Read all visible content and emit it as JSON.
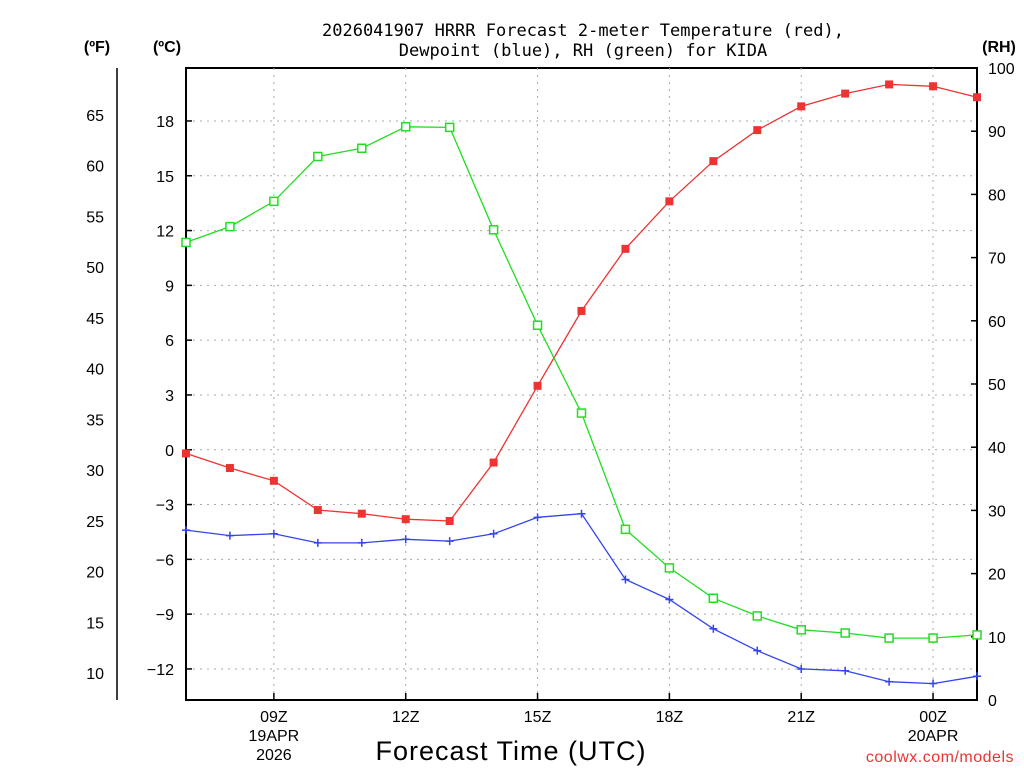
{
  "chart_data": {
    "type": "line",
    "title_line1": "2026041907 HRRR Forecast 2-meter Temperature (red),",
    "title_line2": "Dewpoint (blue), RH (green) for KIDA",
    "xlabel": "Forecast Time (UTC)",
    "unit_f": "(ºF)",
    "unit_c": "(ºC)",
    "unit_rh": "(RH)",
    "watermark": "coolwx.com/models",
    "x_hours": [
      7,
      8,
      9,
      10,
      11,
      12,
      13,
      14,
      15,
      16,
      17,
      18,
      19,
      20,
      21,
      22,
      23,
      24,
      25
    ],
    "xlim": [
      7,
      25
    ],
    "x_ticks": [
      {
        "hour": 9,
        "label": "09Z",
        "sub1": "19APR",
        "sub2": "2026"
      },
      {
        "hour": 12,
        "label": "12Z",
        "sub1": "",
        "sub2": ""
      },
      {
        "hour": 15,
        "label": "15Z",
        "sub1": "",
        "sub2": ""
      },
      {
        "hour": 18,
        "label": "18Z",
        "sub1": "",
        "sub2": ""
      },
      {
        "hour": 21,
        "label": "21Z",
        "sub1": "",
        "sub2": ""
      },
      {
        "hour": 24,
        "label": "00Z",
        "sub1": "20APR",
        "sub2": ""
      }
    ],
    "ylim_c": [
      -13.7,
      20.9
    ],
    "y_ticks_c": [
      18,
      15,
      12,
      9,
      6,
      3,
      0,
      -3,
      -6,
      -9,
      -12
    ],
    "y_tick_labels_c": [
      "18",
      "15",
      "12",
      "9",
      "6",
      "3",
      "0",
      "−3",
      "−6",
      "−9",
      "−12"
    ],
    "y_ticks_f": [
      65,
      60,
      55,
      50,
      45,
      40,
      35,
      30,
      25,
      20,
      15,
      10
    ],
    "y_tick_labels_f": [
      "65",
      "60",
      "55",
      "50",
      "45",
      "40",
      "35",
      "30",
      "25",
      "20",
      "15",
      "10"
    ],
    "ylim_rh": [
      0,
      100
    ],
    "y_ticks_rh": [
      100,
      90,
      80,
      70,
      60,
      50,
      40,
      30,
      20,
      10,
      0
    ],
    "y_tick_labels_rh": [
      "100",
      "90",
      "80",
      "70",
      "60",
      "50",
      "40",
      "30",
      "20",
      "10",
      "0"
    ],
    "series": [
      {
        "name": "Temperature",
        "axis": "C",
        "color": "#ee3333",
        "marker": "filled-square",
        "values": [
          -0.2,
          -1.0,
          -1.7,
          -3.3,
          -3.5,
          -3.8,
          -3.9,
          -0.7,
          3.5,
          7.6,
          11.0,
          13.6,
          15.8,
          17.5,
          18.8,
          19.5,
          20.0,
          19.9,
          19.3
        ]
      },
      {
        "name": "Dewpoint",
        "axis": "C",
        "color": "#3344ee",
        "marker": "plus",
        "values": [
          -4.4,
          -4.7,
          -4.6,
          -5.1,
          -5.1,
          -4.9,
          -5.0,
          -4.6,
          -3.7,
          -3.5,
          -7.1,
          -8.2,
          -9.8,
          -11.0,
          -12.0,
          -12.1,
          -12.7,
          -12.8,
          -12.4
        ]
      },
      {
        "name": "RH",
        "axis": "RH",
        "color": "#22dd22",
        "marker": "open-square",
        "values": [
          72.4,
          74.9,
          78.9,
          86.0,
          87.3,
          90.7,
          90.6,
          74.4,
          59.3,
          45.4,
          27.0,
          20.9,
          16.1,
          13.3,
          11.1,
          10.6,
          9.8,
          9.8,
          10.3
        ]
      }
    ]
  }
}
